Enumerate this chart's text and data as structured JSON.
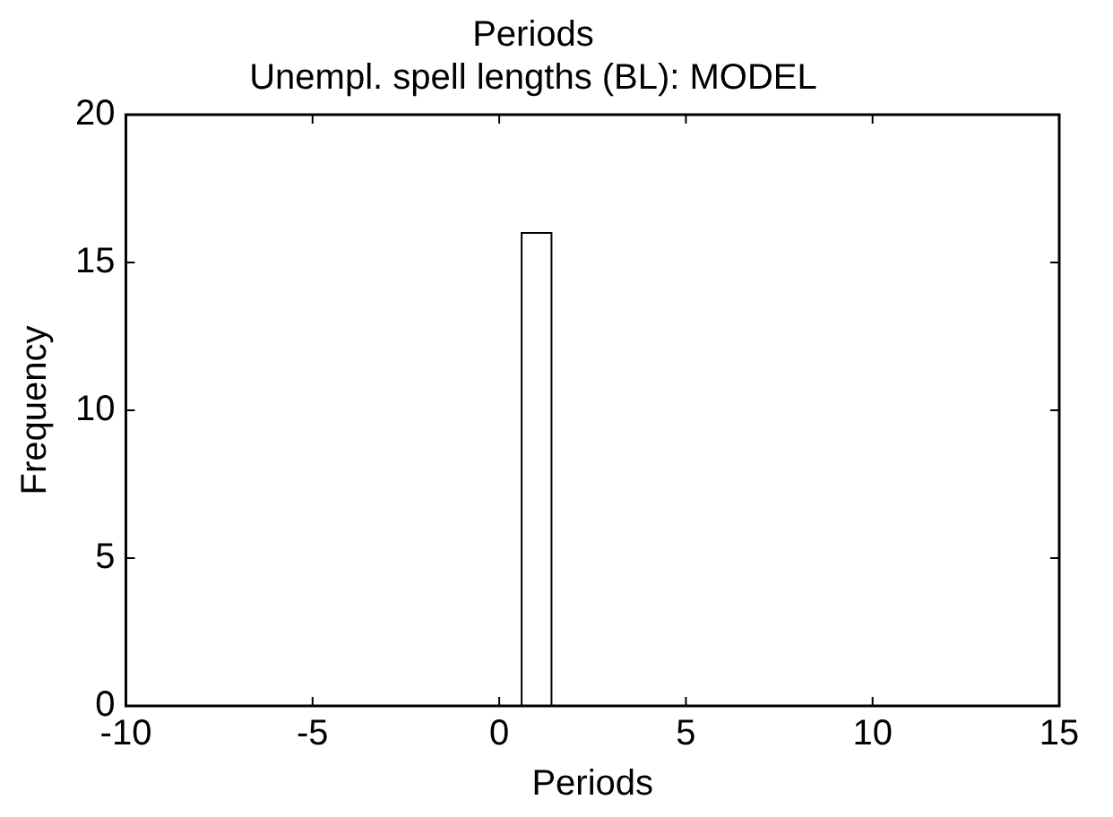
{
  "chart_data": {
    "type": "histogram",
    "title": "Periods",
    "subtitle": "Unempl. spell lengths (BL): MODEL",
    "xlabel": "Periods",
    "ylabel": "Frequency",
    "bins": [
      0.6,
      1.4
    ],
    "values": [
      16
    ],
    "color": "#ffffff",
    "xlim": [
      -10,
      15
    ],
    "xticks": [
      -10,
      -5,
      0,
      5,
      10,
      15
    ],
    "ylim": [
      0,
      20
    ],
    "yticks": [
      0,
      5,
      10,
      15,
      20
    ],
    "grid": false,
    "legend": false
  }
}
